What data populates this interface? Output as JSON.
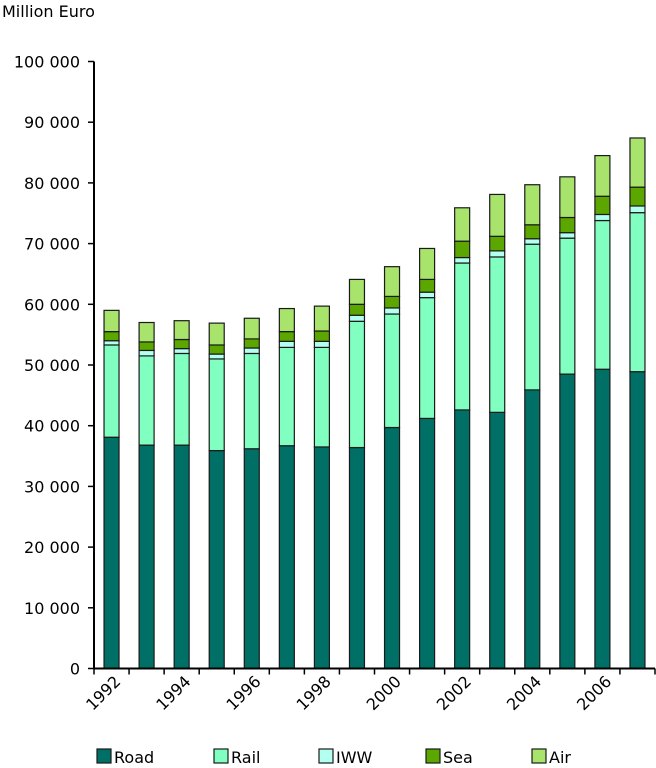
{
  "chart_data": {
    "type": "bar",
    "stacked": true,
    "title": "",
    "unit_label": "Million Euro",
    "xlabel": "",
    "ylabel": "Million Euro",
    "ylim": [
      0,
      100000
    ],
    "yticks": [
      0,
      10000,
      20000,
      30000,
      40000,
      50000,
      60000,
      70000,
      80000,
      90000,
      100000
    ],
    "ytick_labels": [
      "0",
      "10 000",
      "20 000",
      "30 000",
      "40 000",
      "50 000",
      "60 000",
      "70 000",
      "80 000",
      "90 000",
      "100 000"
    ],
    "grid": false,
    "legend_position": "bottom",
    "categories": [
      "1992",
      "1993",
      "1994",
      "1995",
      "1996",
      "1997",
      "1998",
      "1999",
      "2000",
      "2001",
      "2002",
      "2003",
      "2004",
      "2005",
      "2006",
      "2007"
    ],
    "xtick_labels": [
      "1992",
      "",
      "1994",
      "",
      "1996",
      "",
      "1998",
      "",
      "2000",
      "",
      "2002",
      "",
      "2004",
      "",
      "2006",
      ""
    ],
    "series": [
      {
        "name": "Road",
        "color": "#006f66",
        "values": [
          38100,
          36800,
          36800,
          35900,
          36200,
          36700,
          36500,
          36400,
          39700,
          41200,
          42600,
          42200,
          45900,
          48500,
          49300,
          48900
        ]
      },
      {
        "name": "Rail",
        "color": "#80ffc0",
        "values": [
          15200,
          14700,
          15100,
          15100,
          15700,
          16200,
          16400,
          20800,
          18700,
          19900,
          24200,
          25600,
          24000,
          22400,
          24500,
          26200
        ]
      },
      {
        "name": "IWW",
        "color": "#b3fff0",
        "values": [
          700,
          900,
          800,
          800,
          900,
          1000,
          1000,
          1000,
          1000,
          900,
          900,
          1000,
          900,
          900,
          1000,
          1100
        ]
      },
      {
        "name": "Sea",
        "color": "#5ca600",
        "values": [
          1500,
          1400,
          1500,
          1500,
          1500,
          1600,
          1700,
          1800,
          1900,
          2100,
          2700,
          2400,
          2300,
          2500,
          3000,
          3100
        ]
      },
      {
        "name": "Air",
        "color": "#a8e46c",
        "values": [
          3500,
          3200,
          3100,
          3600,
          3400,
          3800,
          4100,
          4100,
          4900,
          5100,
          5500,
          6900,
          6600,
          6700,
          6700,
          8100
        ]
      }
    ]
  }
}
